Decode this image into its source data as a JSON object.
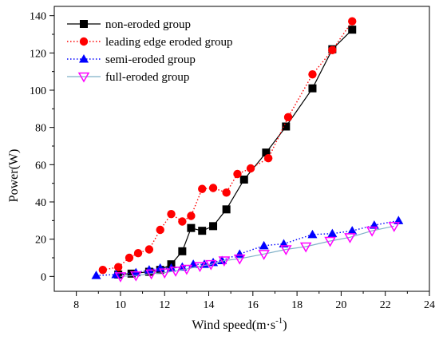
{
  "chart_data": {
    "type": "line",
    "title": "",
    "xlabel": "Wind speed(m·s",
    "xlabel_sup": "-1",
    "xlabel_close": ")",
    "ylabel": "Power(W)",
    "xlim": [
      7,
      24
    ],
    "ylim": [
      -8,
      145
    ],
    "xticks": [
      8,
      10,
      12,
      14,
      16,
      18,
      20,
      22,
      24
    ],
    "yticks": [
      0,
      20,
      40,
      60,
      80,
      100,
      120,
      140
    ],
    "grid": false,
    "legend_position": "top-left",
    "series": [
      {
        "name": "non-eroded group",
        "color": "#000000",
        "marker": "square",
        "line": "solid",
        "points": [
          [
            9.9,
            1.0
          ],
          [
            10.5,
            1.5
          ],
          [
            11.3,
            2.5
          ],
          [
            11.8,
            3.5
          ],
          [
            12.3,
            6.5
          ],
          [
            12.8,
            13.5
          ],
          [
            13.2,
            26.0
          ],
          [
            13.7,
            24.5
          ],
          [
            14.2,
            27.0
          ],
          [
            14.8,
            36.0
          ],
          [
            15.6,
            52.0
          ],
          [
            16.6,
            66.5
          ],
          [
            17.5,
            80.5
          ],
          [
            18.7,
            101.0
          ],
          [
            19.6,
            122.0
          ],
          [
            20.5,
            132.5
          ]
        ]
      },
      {
        "name": "leading edge eroded group",
        "color": "#ff0000",
        "marker": "circle",
        "line": "dotted",
        "points": [
          [
            9.2,
            3.5
          ],
          [
            9.9,
            5.0
          ],
          [
            10.4,
            10.0
          ],
          [
            10.8,
            12.5
          ],
          [
            11.3,
            14.5
          ],
          [
            11.8,
            25.0
          ],
          [
            12.3,
            33.5
          ],
          [
            12.8,
            29.5
          ],
          [
            13.2,
            32.5
          ],
          [
            13.7,
            47.0
          ],
          [
            14.2,
            47.5
          ],
          [
            14.8,
            45.0
          ],
          [
            15.3,
            55.0
          ],
          [
            15.9,
            58.0
          ],
          [
            16.7,
            63.5
          ],
          [
            17.6,
            85.5
          ],
          [
            18.7,
            108.5
          ],
          [
            19.6,
            121.5
          ],
          [
            20.5,
            137.0
          ]
        ]
      },
      {
        "name": "semi-eroded group",
        "color": "#0000ff",
        "marker": "triangle-up",
        "line": "dotted",
        "points": [
          [
            8.9,
            0.5
          ],
          [
            9.8,
            1.0
          ],
          [
            10.7,
            2.0
          ],
          [
            11.3,
            3.5
          ],
          [
            11.8,
            4.5
          ],
          [
            12.3,
            4.5
          ],
          [
            12.8,
            5.0
          ],
          [
            13.3,
            6.5
          ],
          [
            13.8,
            6.5
          ],
          [
            14.2,
            7.5
          ],
          [
            14.6,
            8.5
          ],
          [
            15.4,
            12.0
          ],
          [
            16.5,
            16.5
          ],
          [
            17.4,
            17.5
          ],
          [
            18.7,
            22.5
          ],
          [
            19.6,
            23.0
          ],
          [
            20.5,
            24.5
          ],
          [
            21.5,
            27.5
          ],
          [
            22.6,
            30.0
          ]
        ]
      },
      {
        "name": "full-eroded group",
        "color": "#ff00ff",
        "line_color": "#7fb0c8",
        "marker": "triangle-down",
        "line": "solid",
        "points": [
          [
            10.0,
            0.0
          ],
          [
            10.7,
            0.5
          ],
          [
            11.4,
            1.5
          ],
          [
            12.0,
            2.0
          ],
          [
            12.5,
            3.0
          ],
          [
            13.0,
            4.0
          ],
          [
            13.6,
            5.5
          ],
          [
            14.1,
            6.5
          ],
          [
            14.7,
            8.5
          ],
          [
            15.4,
            9.5
          ],
          [
            16.5,
            12.0
          ],
          [
            17.5,
            14.5
          ],
          [
            18.4,
            16.0
          ],
          [
            19.5,
            19.0
          ],
          [
            20.4,
            21.0
          ],
          [
            21.4,
            24.5
          ],
          [
            22.4,
            27.0
          ]
        ]
      }
    ]
  }
}
